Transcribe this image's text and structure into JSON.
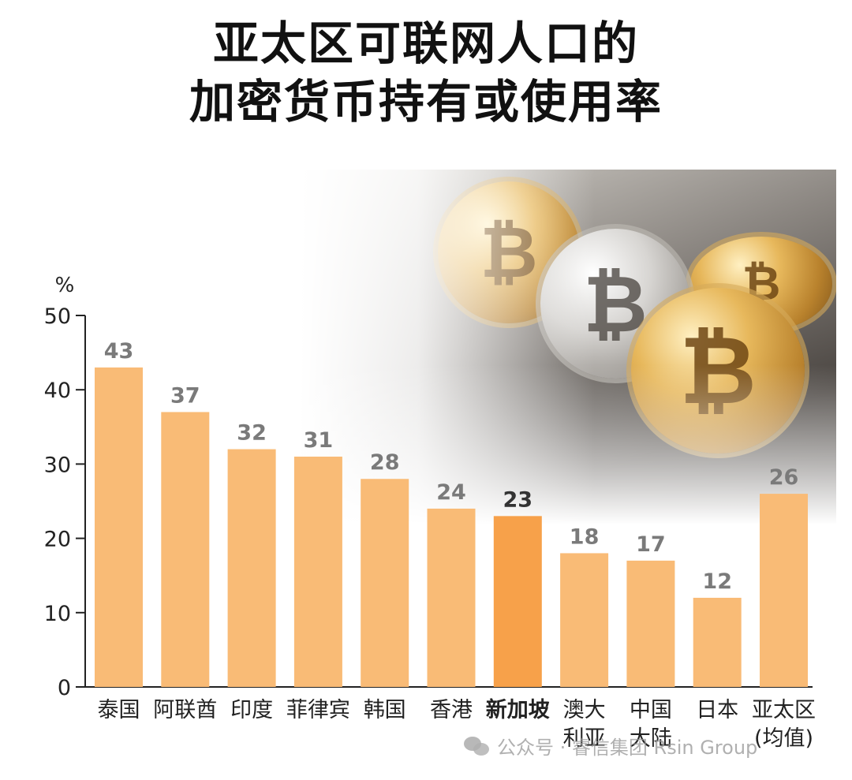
{
  "title_lines": [
    "亚太区可联网人口的",
    "加密货币持有或使用率"
  ],
  "watermark": "公众号 · 睿信集团 Rsin Group",
  "watermark_icon": "wechat-icon",
  "colors": {
    "bar": "#f9bb76",
    "bar_highlight": "#f7a14a",
    "value_label": "#7a7a7a",
    "value_label_highlight": "#333333",
    "axis": "#222222",
    "text": "#222222"
  },
  "chart_data": {
    "type": "bar",
    "title": "亚太区可联网人口的加密货币持有或使用率",
    "ylabel": "%",
    "ylim": [
      0,
      50
    ],
    "yticks": [
      0,
      10,
      20,
      30,
      40,
      50
    ],
    "grid": false,
    "highlight_category": "新加坡",
    "categories": [
      [
        "泰国"
      ],
      [
        "阿联酋"
      ],
      [
        "印度"
      ],
      [
        "菲律宾"
      ],
      [
        "韩国"
      ],
      [
        "香港"
      ],
      [
        "新加坡"
      ],
      [
        "澳大",
        "利亚"
      ],
      [
        "中国",
        "大陆"
      ],
      [
        "日本"
      ],
      [
        "亚太区",
        "(均值)"
      ]
    ],
    "values": [
      43,
      37,
      32,
      31,
      28,
      24,
      23,
      18,
      17,
      12,
      26
    ]
  }
}
